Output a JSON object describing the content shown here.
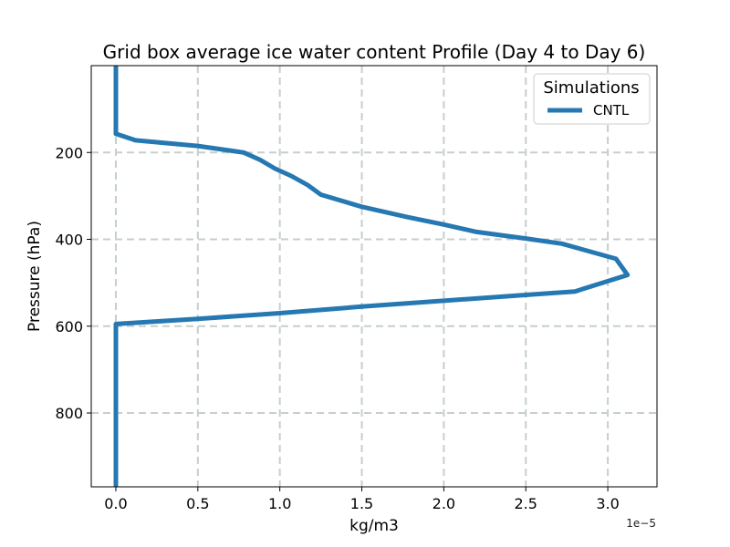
{
  "chart_data": {
    "type": "line",
    "title": "Grid box average ice water content Profile (Day 4 to Day 6)",
    "xlabel": "kg/m3",
    "ylabel": "Pressure (hPa)",
    "x_offset_label": "1e−5",
    "xlim": [
      -0.15,
      3.3
    ],
    "ylim": [
      970,
      0
    ],
    "y_inverted": true,
    "grid": true,
    "x_ticks": [
      0.0,
      0.5,
      1.0,
      1.5,
      2.0,
      2.5,
      3.0
    ],
    "x_tick_labels": [
      "0.0",
      "0.5",
      "1.0",
      "1.5",
      "2.0",
      "2.5",
      "3.0"
    ],
    "y_ticks": [
      200,
      400,
      600,
      800
    ],
    "y_tick_labels": [
      "200",
      "400",
      "600",
      "800"
    ],
    "legend": {
      "title": "Simulations",
      "position": "top-right",
      "entries": [
        "CNTL"
      ]
    },
    "series": [
      {
        "name": "CNTL",
        "color": "#2678b2",
        "x": [
          0.0,
          0.0,
          0.0,
          0.12,
          0.5,
          0.78,
          0.88,
          0.97,
          1.07,
          1.17,
          1.25,
          1.5,
          1.78,
          2.0,
          2.2,
          2.5,
          2.72,
          3.05,
          3.12,
          2.8,
          2.5,
          1.5,
          1.0,
          0.5,
          0.0,
          0.0,
          0.0
        ],
        "y": [
          0,
          100,
          157,
          172,
          185,
          200,
          217,
          237,
          254,
          275,
          297,
          325,
          349,
          366,
          383,
          398,
          410,
          445,
          482,
          520,
          528,
          555,
          570,
          583,
          595,
          800,
          970
        ]
      }
    ]
  }
}
